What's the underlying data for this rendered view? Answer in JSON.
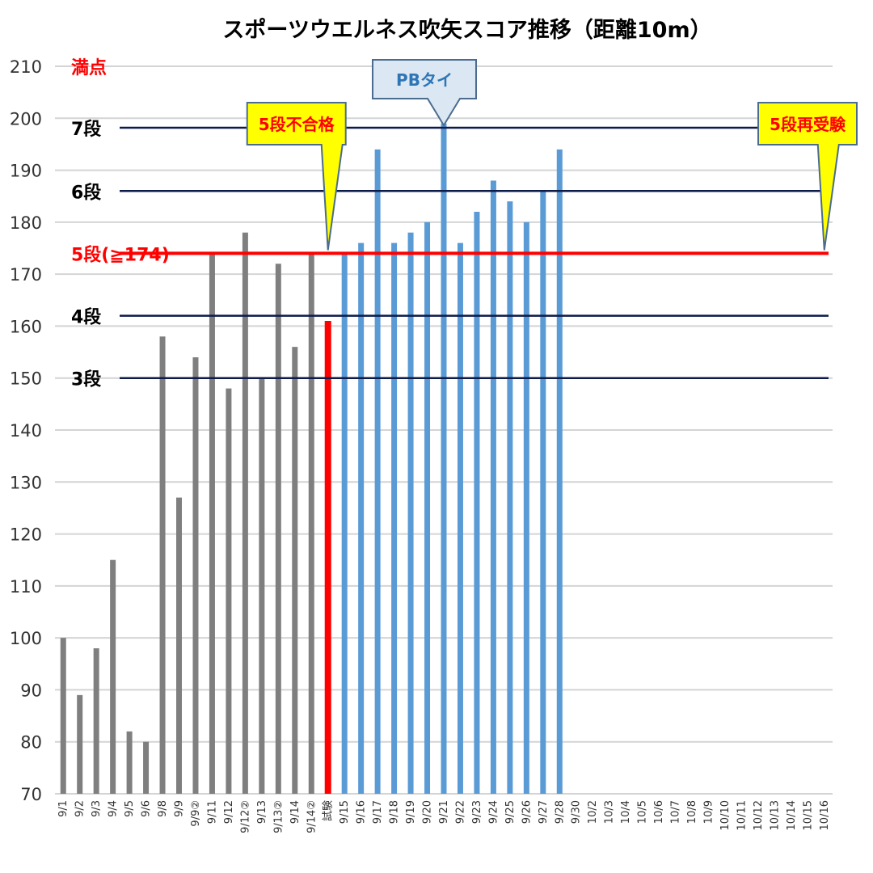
{
  "chart_data": {
    "type": "bar",
    "title": "スポーツウエルネス吹矢スコア推移（距離10m）",
    "ylim": [
      70,
      210
    ],
    "yticks": [
      70,
      80,
      90,
      100,
      110,
      120,
      130,
      140,
      150,
      160,
      170,
      180,
      190,
      200,
      210
    ],
    "grid": true,
    "legend": "none",
    "categories": [
      "9/1",
      "9/2",
      "9/3",
      "9/4",
      "9/5",
      "9/6",
      "9/8",
      "9/9",
      "9/9②",
      "9/11",
      "9/12",
      "9/12②",
      "9/13",
      "9/13②",
      "9/14",
      "9/14②",
      "試験",
      "9/15",
      "9/16",
      "9/17",
      "9/18",
      "9/19",
      "9/20",
      "9/21",
      "9/22",
      "9/23",
      "9/24",
      "9/25",
      "9/26",
      "9/27",
      "9/28",
      "9/30",
      "10/2",
      "10/3",
      "10/4",
      "10/5",
      "10/6",
      "10/7",
      "10/8",
      "10/9",
      "10/10",
      "10/11",
      "10/12",
      "10/13",
      "10/14",
      "10/15",
      "10/16"
    ],
    "values": [
      100,
      89,
      98,
      115,
      82,
      80,
      158,
      127,
      154,
      174,
      148,
      178,
      150,
      172,
      156,
      174,
      161,
      174,
      176,
      194,
      176,
      178,
      180,
      199,
      176,
      182,
      188,
      184,
      180,
      186,
      194,
      null,
      null,
      null,
      null,
      null,
      null,
      null,
      null,
      null,
      null,
      null,
      null,
      null,
      null,
      null,
      null
    ],
    "bar_colors": {
      "practice_before": "#7f7f7f",
      "exam": "#ff0000",
      "practice_after": "#5b9bd5"
    },
    "reference_lines": [
      {
        "label": "満点",
        "value": 210,
        "color": "#ff0000",
        "line": false
      },
      {
        "label": "7段",
        "value": 198,
        "color": "#0d1b4b",
        "line": true
      },
      {
        "label": "6段",
        "value": 186,
        "color": "#0d1b4b",
        "line": true
      },
      {
        "label": "5段(≧174)",
        "value": 174,
        "color": "#ff0000",
        "line": true
      },
      {
        "label": "4段",
        "value": 162,
        "color": "#0d1b4b",
        "line": true
      },
      {
        "label": "3段",
        "value": 150,
        "color": "#0d1b4b",
        "line": true
      }
    ],
    "annotations": [
      {
        "text": "5段不合格",
        "style": "yellow",
        "target_index": 16,
        "target_value": 174
      },
      {
        "text": "PBタイ",
        "style": "blue",
        "target_index": 23,
        "target_value": 199
      },
      {
        "text": "5段再受験",
        "style": "yellow",
        "target_index": 46,
        "target_value": 174
      }
    ]
  }
}
